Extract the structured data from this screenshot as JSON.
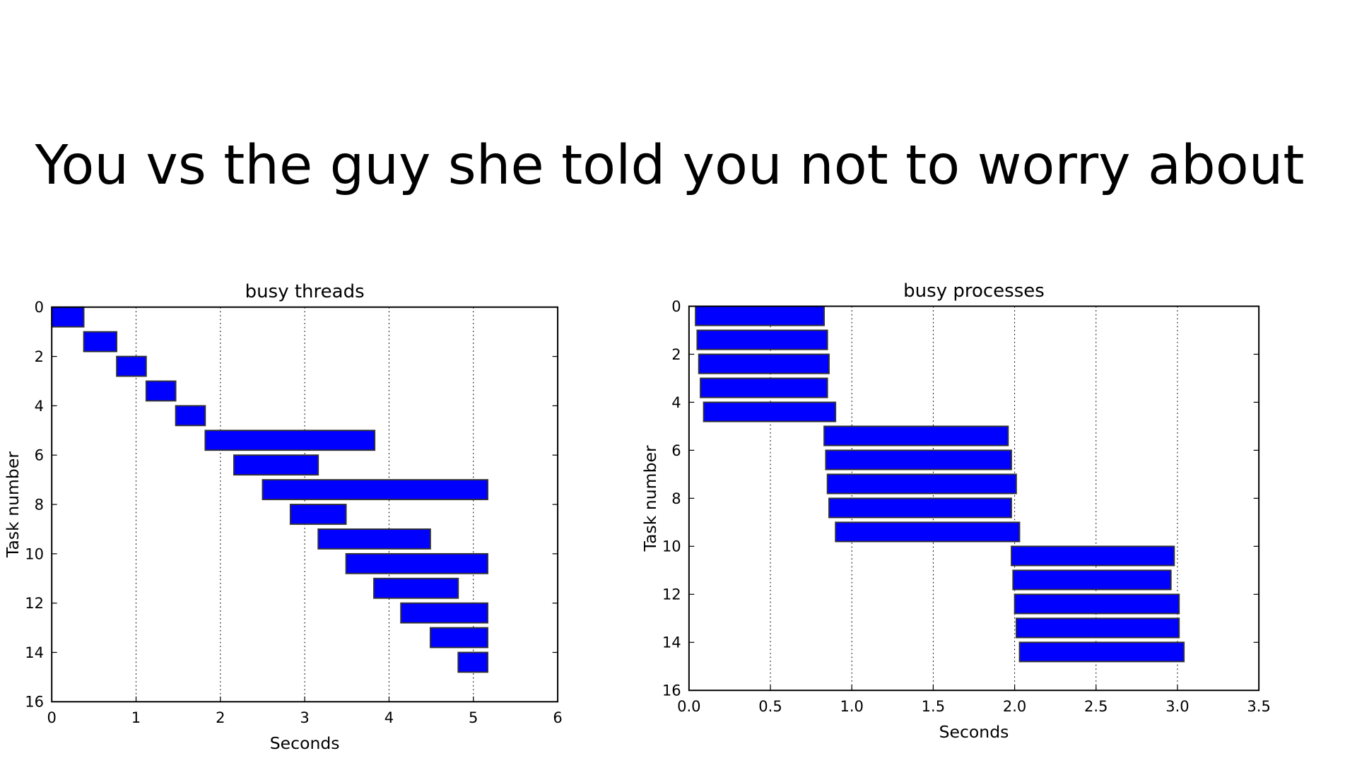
{
  "caption": "You vs the guy she told you not to worry about",
  "chart_data": [
    {
      "type": "range-barh",
      "title": "busy threads",
      "xlabel": "Seconds",
      "ylabel": "Task number",
      "xlim": [
        0,
        6
      ],
      "xticks": [
        0,
        1,
        2,
        3,
        4,
        5,
        6
      ],
      "ylim": [
        0,
        16
      ],
      "yticks": [
        0,
        2,
        4,
        6,
        8,
        10,
        12,
        14,
        16
      ],
      "y_inverted": true,
      "grid": "x",
      "series": [
        {
          "color": "#0000ff",
          "y": [
            0,
            1,
            2,
            3,
            4,
            5,
            6,
            7,
            8,
            9,
            10,
            11,
            12,
            13,
            14
          ],
          "start": [
            0,
            0.38,
            0.77,
            1.12,
            1.47,
            1.82,
            2.16,
            2.5,
            2.83,
            3.16,
            3.49,
            3.82,
            4.14,
            4.49,
            4.82
          ],
          "end": [
            0.38,
            0.77,
            1.12,
            1.47,
            1.82,
            3.83,
            3.16,
            5.17,
            3.49,
            4.49,
            5.17,
            4.82,
            5.17,
            5.17,
            5.17
          ]
        }
      ]
    },
    {
      "type": "range-barh",
      "title": "busy processes",
      "xlabel": "Seconds",
      "ylabel": "Task number",
      "xlim": [
        0,
        3.5
      ],
      "xticks": [
        {
          "value": 0,
          "label": "0.0"
        },
        0.5,
        {
          "value": 1,
          "label": "1.0"
        },
        1.5,
        {
          "value": 2,
          "label": "2.0"
        },
        2.5,
        {
          "value": 3,
          "label": "3.0"
        },
        3.5
      ],
      "ylim": [
        0,
        16
      ],
      "yticks": [
        0,
        2,
        4,
        6,
        8,
        10,
        12,
        14,
        16
      ],
      "y_inverted": true,
      "grid": "x",
      "series": [
        {
          "color": "#0000ff",
          "y": [
            0,
            1,
            2,
            3,
            4,
            5,
            6,
            7,
            8,
            9,
            10,
            11,
            12,
            13,
            14
          ],
          "start": [
            0.04,
            0.05,
            0.06,
            0.07,
            0.09,
            0.83,
            0.84,
            0.85,
            0.86,
            0.9,
            1.98,
            1.99,
            2.0,
            2.01,
            2.03
          ],
          "end": [
            0.83,
            0.85,
            0.86,
            0.85,
            0.9,
            1.96,
            1.98,
            2.01,
            1.98,
            2.03,
            2.98,
            2.96,
            3.01,
            3.01,
            3.04
          ]
        }
      ]
    }
  ]
}
